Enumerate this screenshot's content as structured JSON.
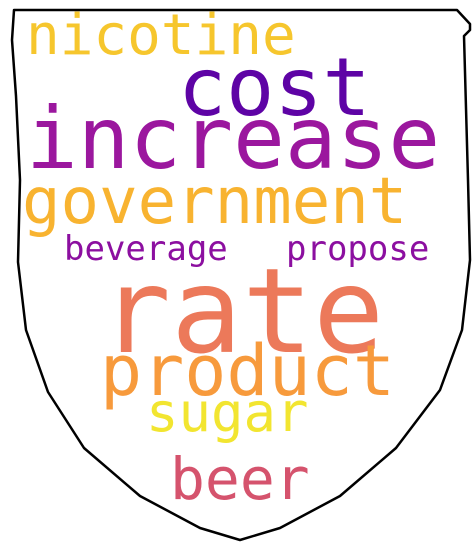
{
  "words": {
    "nicotine": {
      "text": "nicotine",
      "color": "#f6c62d"
    },
    "cost": {
      "text": "cost",
      "color": "#5e03a5"
    },
    "increase": {
      "text": "increase",
      "color": "#9b179e"
    },
    "government": {
      "text": "government",
      "color": "#f8b330"
    },
    "beverage": {
      "text": "beverage",
      "color": "#8c0fa0"
    },
    "propose": {
      "text": "propose",
      "color": "#8c0fa0"
    },
    "rate": {
      "text": "rate",
      "color": "#ec795a"
    },
    "product": {
      "text": "product",
      "color": "#f79a3c"
    },
    "sugar": {
      "text": "sugar",
      "color": "#f2e530"
    },
    "beer": {
      "text": "beer",
      "color": "#d5536d"
    }
  }
}
